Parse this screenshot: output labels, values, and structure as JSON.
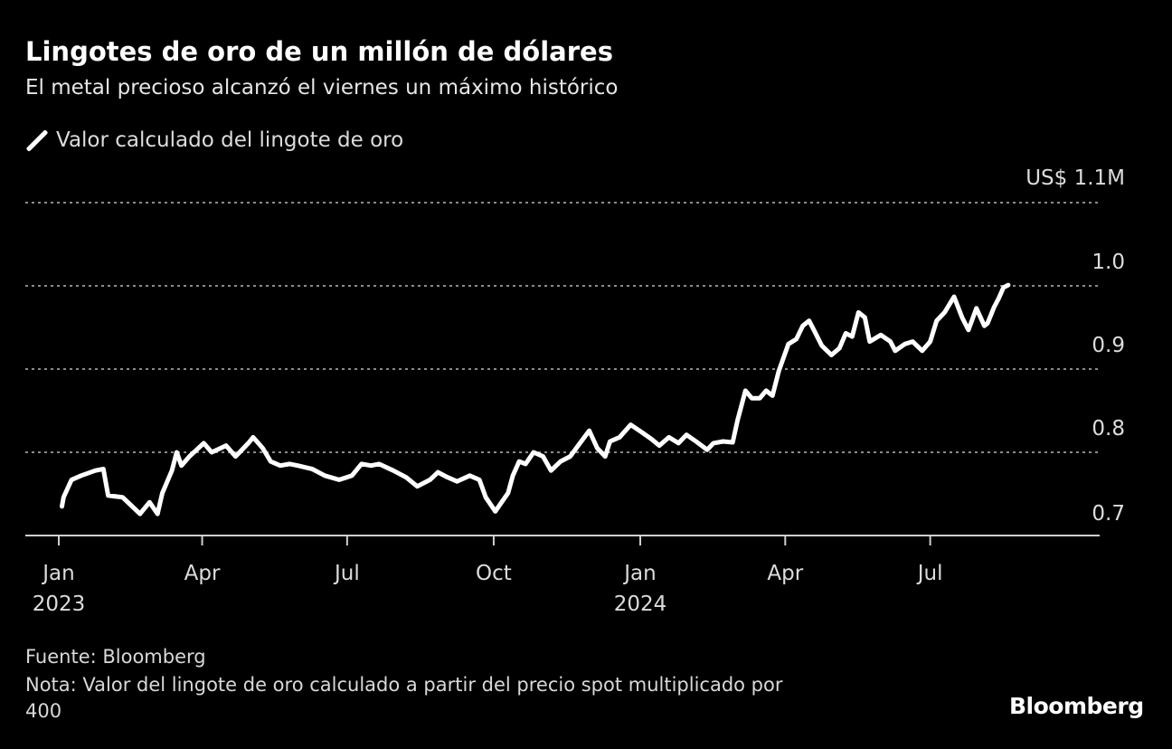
{
  "chart_data": {
    "type": "line",
    "title": "Lingotes de oro de un millón de dólares",
    "subtitle": "El metal precioso alcanzó el viernes un máximo histórico",
    "xlabel": "",
    "ylabel": "",
    "y_unit_label": "US$ 1.1M",
    "ylim": [
      0.7,
      1.1
    ],
    "y_ticks": [
      {
        "value": 1.1,
        "label": "US$ 1.1M"
      },
      {
        "value": 1.0,
        "label": "1.0"
      },
      {
        "value": 0.9,
        "label": "0.9"
      },
      {
        "value": 0.8,
        "label": "0.8"
      },
      {
        "value": 0.7,
        "label": "0.7"
      }
    ],
    "x_ticks": [
      {
        "date": "2023-01-01",
        "label": "Jan",
        "year": "2023"
      },
      {
        "date": "2023-04-01",
        "label": "Apr",
        "year": ""
      },
      {
        "date": "2023-07-01",
        "label": "Jul",
        "year": ""
      },
      {
        "date": "2023-10-01",
        "label": "Oct",
        "year": ""
      },
      {
        "date": "2024-01-01",
        "label": "Jan",
        "year": "2024"
      },
      {
        "date": "2024-04-01",
        "label": "Apr",
        "year": ""
      },
      {
        "date": "2024-07-01",
        "label": "Jul",
        "year": ""
      }
    ],
    "grid": "horizontal dotted",
    "legend_position": "top-left",
    "series": [
      {
        "name": "Valor calculado del lingote de oro",
        "color": "#ffffff",
        "points": [
          [
            "2023-01-03",
            0.735
          ],
          [
            "2023-01-04",
            0.746
          ],
          [
            "2023-01-09",
            0.767
          ],
          [
            "2023-01-15",
            0.772
          ],
          [
            "2023-01-24",
            0.778
          ],
          [
            "2023-01-29",
            0.78
          ],
          [
            "2023-02-01",
            0.748
          ],
          [
            "2023-02-10",
            0.746
          ],
          [
            "2023-02-15",
            0.737
          ],
          [
            "2023-02-21",
            0.726
          ],
          [
            "2023-02-27",
            0.74
          ],
          [
            "2023-03-04",
            0.726
          ],
          [
            "2023-03-07",
            0.751
          ],
          [
            "2023-03-13",
            0.778
          ],
          [
            "2023-03-16",
            0.8
          ],
          [
            "2023-03-19",
            0.784
          ],
          [
            "2023-03-24",
            0.795
          ],
          [
            "2023-04-02",
            0.811
          ],
          [
            "2023-04-07",
            0.8
          ],
          [
            "2023-04-16",
            0.808
          ],
          [
            "2023-04-22",
            0.795
          ],
          [
            "2023-04-30",
            0.811
          ],
          [
            "2023-05-03",
            0.818
          ],
          [
            "2023-05-09",
            0.805
          ],
          [
            "2023-05-14",
            0.789
          ],
          [
            "2023-05-20",
            0.784
          ],
          [
            "2023-05-26",
            0.786
          ],
          [
            "2023-05-31",
            0.784
          ],
          [
            "2023-06-09",
            0.78
          ],
          [
            "2023-06-17",
            0.772
          ],
          [
            "2023-06-26",
            0.767
          ],
          [
            "2023-07-04",
            0.772
          ],
          [
            "2023-07-10",
            0.786
          ],
          [
            "2023-07-16",
            0.784
          ],
          [
            "2023-07-21",
            0.786
          ],
          [
            "2023-07-30",
            0.778
          ],
          [
            "2023-08-07",
            0.77
          ],
          [
            "2023-08-14",
            0.759
          ],
          [
            "2023-08-22",
            0.767
          ],
          [
            "2023-08-27",
            0.776
          ],
          [
            "2023-09-02",
            0.77
          ],
          [
            "2023-09-08",
            0.765
          ],
          [
            "2023-09-16",
            0.772
          ],
          [
            "2023-09-22",
            0.767
          ],
          [
            "2023-09-26",
            0.746
          ],
          [
            "2023-10-02",
            0.729
          ],
          [
            "2023-10-06",
            0.74
          ],
          [
            "2023-10-10",
            0.751
          ],
          [
            "2023-10-13",
            0.772
          ],
          [
            "2023-10-17",
            0.789
          ],
          [
            "2023-10-21",
            0.786
          ],
          [
            "2023-10-26",
            0.8
          ],
          [
            "2023-11-01",
            0.795
          ],
          [
            "2023-11-06",
            0.778
          ],
          [
            "2023-11-12",
            0.789
          ],
          [
            "2023-11-18",
            0.795
          ],
          [
            "2023-11-23",
            0.808
          ],
          [
            "2023-11-30",
            0.826
          ],
          [
            "2023-12-05",
            0.805
          ],
          [
            "2023-12-10",
            0.795
          ],
          [
            "2023-12-13",
            0.813
          ],
          [
            "2023-12-19",
            0.818
          ],
          [
            "2023-12-26",
            0.833
          ],
          [
            "2024-01-02",
            0.824
          ],
          [
            "2024-01-08",
            0.816
          ],
          [
            "2024-01-13",
            0.808
          ],
          [
            "2024-01-19",
            0.818
          ],
          [
            "2024-01-25",
            0.811
          ],
          [
            "2024-01-30",
            0.821
          ],
          [
            "2024-02-05",
            0.813
          ],
          [
            "2024-02-12",
            0.803
          ],
          [
            "2024-02-16",
            0.811
          ],
          [
            "2024-02-22",
            0.813
          ],
          [
            "2024-02-28",
            0.812
          ],
          [
            "2024-03-02",
            0.838
          ],
          [
            "2024-03-07",
            0.874
          ],
          [
            "2024-03-11",
            0.865
          ],
          [
            "2024-03-16",
            0.865
          ],
          [
            "2024-03-20",
            0.874
          ],
          [
            "2024-03-24",
            0.868
          ],
          [
            "2024-03-28",
            0.898
          ],
          [
            "2024-04-03",
            0.93
          ],
          [
            "2024-04-08",
            0.936
          ],
          [
            "2024-04-12",
            0.952
          ],
          [
            "2024-04-16",
            0.958
          ],
          [
            "2024-04-19",
            0.947
          ],
          [
            "2024-04-24",
            0.928
          ],
          [
            "2024-04-30",
            0.917
          ],
          [
            "2024-05-05",
            0.925
          ],
          [
            "2024-05-09",
            0.943
          ],
          [
            "2024-05-13",
            0.939
          ],
          [
            "2024-05-17",
            0.968
          ],
          [
            "2024-05-21",
            0.962
          ],
          [
            "2024-05-24",
            0.933
          ],
          [
            "2024-05-31",
            0.941
          ],
          [
            "2024-06-06",
            0.933
          ],
          [
            "2024-06-09",
            0.922
          ],
          [
            "2024-06-15",
            0.93
          ],
          [
            "2024-06-20",
            0.933
          ],
          [
            "2024-06-26",
            0.922
          ],
          [
            "2024-07-01",
            0.933
          ],
          [
            "2024-07-05",
            0.958
          ],
          [
            "2024-07-10",
            0.968
          ],
          [
            "2024-07-16",
            0.987
          ],
          [
            "2024-07-21",
            0.962
          ],
          [
            "2024-07-25",
            0.947
          ],
          [
            "2024-07-30",
            0.973
          ],
          [
            "2024-08-04",
            0.952
          ],
          [
            "2024-08-06",
            0.955
          ],
          [
            "2024-08-10",
            0.974
          ],
          [
            "2024-08-13",
            0.985
          ],
          [
            "2024-08-16",
            0.998
          ],
          [
            "2024-08-19",
            1.001
          ]
        ]
      }
    ]
  },
  "footer": {
    "source": "Fuente: Bloomberg",
    "note": "Nota: Valor del lingote de oro calculado a partir del precio spot multiplicado por",
    "note_cont": "400",
    "logo": "Bloomberg"
  }
}
